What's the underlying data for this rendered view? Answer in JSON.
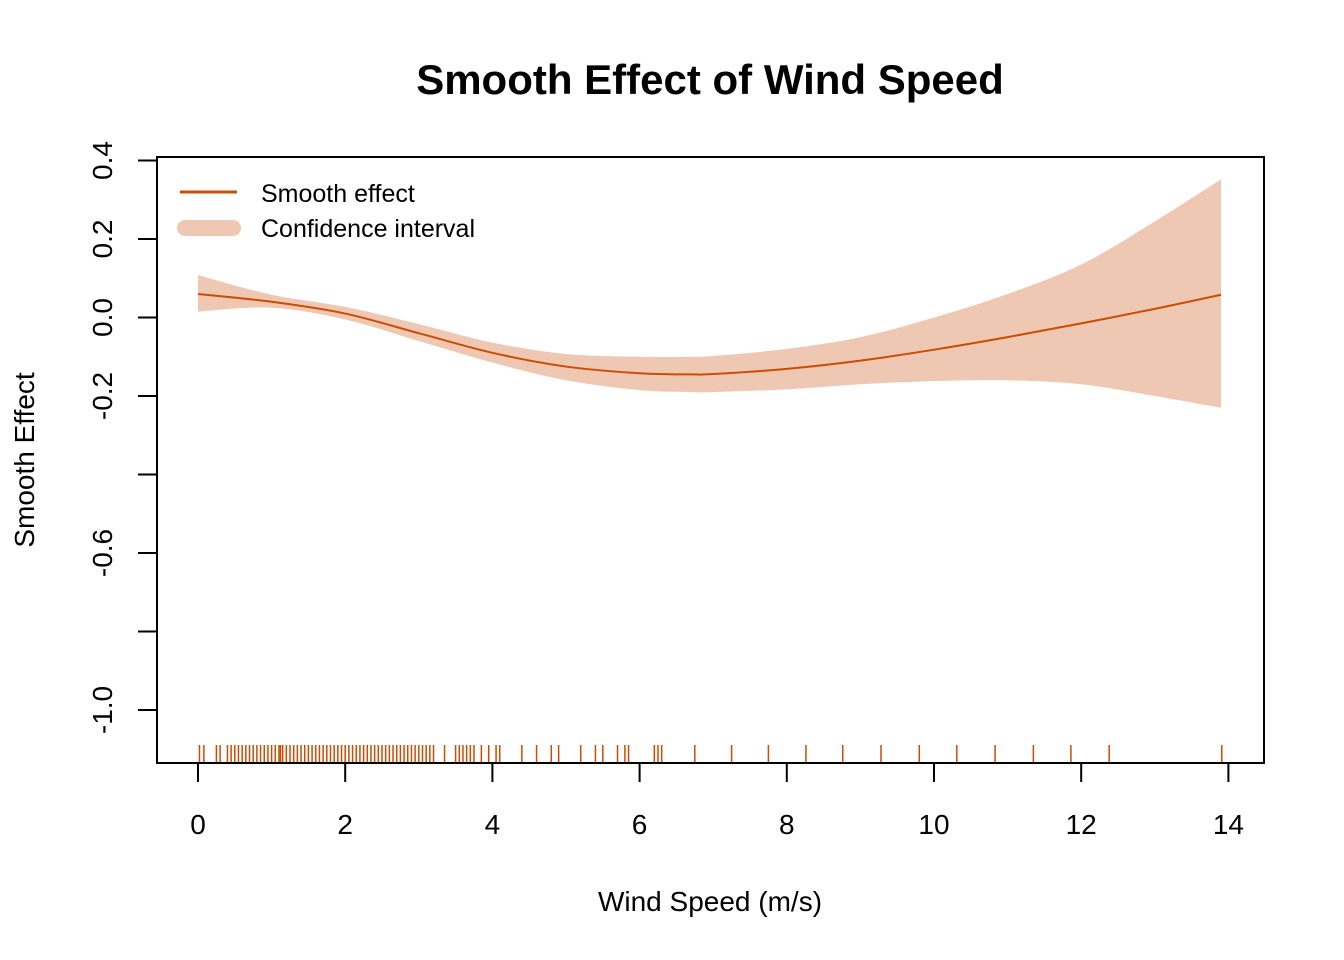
{
  "chart_data": {
    "type": "line",
    "title": "Smooth Effect of Wind Speed",
    "xlabel": "Wind Speed (m/s)",
    "ylabel": "Smooth Effect",
    "xlim": [
      -0.55,
      14.45
    ],
    "ylim": [
      -1.135,
      0.405
    ],
    "x_ticks": [
      0,
      2,
      4,
      6,
      8,
      10,
      12,
      14
    ],
    "x_tick_labels": [
      "0",
      "2",
      "4",
      "6",
      "8",
      "10",
      "12",
      "14"
    ],
    "y_ticks": [
      0.4,
      0.2,
      0.0,
      -0.2,
      -0.4,
      -0.6,
      -0.8,
      -1.0
    ],
    "y_tick_labels": [
      "0.4",
      "0.2",
      "0.0",
      "-0.2",
      "",
      "-0.6",
      "",
      "-1.0"
    ],
    "grid": false,
    "legend": {
      "position": "top-left",
      "entries": [
        {
          "label": "Smooth effect",
          "kind": "line"
        },
        {
          "label": "Confidence interval",
          "kind": "band"
        }
      ]
    },
    "colors": {
      "line": "#cc4c02",
      "band": "#efc8b4",
      "rug": "#cc4c02"
    },
    "series": [
      {
        "name": "Smooth effect",
        "x": [
          0,
          1,
          2,
          3,
          4,
          5,
          6,
          6.7,
          7,
          8,
          9,
          10,
          11,
          12,
          13,
          13.9
        ],
        "y": [
          0.06,
          0.04,
          0.01,
          -0.04,
          -0.09,
          -0.125,
          -0.142,
          -0.145,
          -0.144,
          -0.131,
          -0.11,
          -0.082,
          -0.05,
          -0.015,
          0.022,
          0.058
        ]
      },
      {
        "name": "Confidence interval",
        "x": [
          0,
          1,
          2,
          3,
          4,
          5,
          6,
          6.7,
          7,
          8,
          9,
          10,
          11,
          12,
          13,
          13.9
        ],
        "lower": [
          0.015,
          0.025,
          -0.005,
          -0.06,
          -0.115,
          -0.16,
          -0.185,
          -0.19,
          -0.19,
          -0.183,
          -0.17,
          -0.162,
          -0.16,
          -0.17,
          -0.2,
          -0.23
        ],
        "upper": [
          0.108,
          0.058,
          0.027,
          -0.017,
          -0.064,
          -0.093,
          -0.1,
          -0.1,
          -0.098,
          -0.08,
          -0.05,
          0.0,
          0.06,
          0.135,
          0.245,
          0.352
        ]
      }
    ],
    "rug": [
      0.02,
      0.08,
      0.25,
      0.3,
      0.4,
      0.45,
      0.5,
      0.55,
      0.6,
      0.65,
      0.7,
      0.75,
      0.8,
      0.85,
      0.9,
      0.95,
      1.0,
      1.05,
      1.1,
      1.12,
      1.15,
      1.2,
      1.25,
      1.3,
      1.35,
      1.4,
      1.45,
      1.5,
      1.55,
      1.6,
      1.65,
      1.7,
      1.75,
      1.8,
      1.85,
      1.9,
      1.95,
      2.0,
      2.05,
      2.1,
      2.15,
      2.2,
      2.25,
      2.3,
      2.35,
      2.4,
      2.45,
      2.5,
      2.55,
      2.6,
      2.65,
      2.7,
      2.75,
      2.8,
      2.85,
      2.9,
      2.95,
      3.0,
      3.05,
      3.1,
      3.15,
      3.2,
      3.35,
      3.5,
      3.55,
      3.6,
      3.65,
      3.7,
      3.75,
      3.85,
      3.95,
      4.05,
      4.1,
      4.4,
      4.6,
      4.8,
      4.9,
      5.2,
      5.4,
      5.5,
      5.7,
      5.8,
      5.85,
      6.2,
      6.25,
      6.3,
      6.75,
      7.25,
      7.75,
      8.26,
      8.76,
      9.28,
      9.8,
      10.31,
      10.83,
      11.35,
      11.86,
      12.38,
      13.91
    ]
  }
}
